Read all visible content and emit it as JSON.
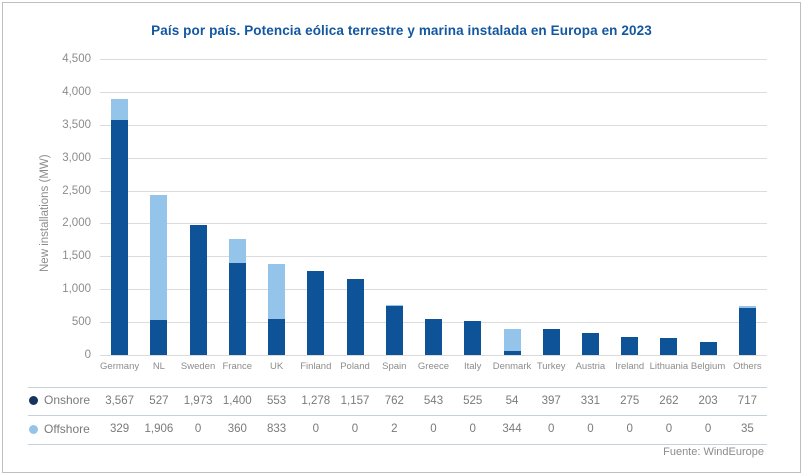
{
  "chart_data": {
    "type": "bar",
    "stacked": true,
    "title": "País por país. Potencia eólica terrestre y marina instalada en Europa en 2023",
    "ylabel": "New installations (MW)",
    "xlabel": "",
    "ylim": [
      0,
      4500
    ],
    "ytick_step": 500,
    "grid": true,
    "legend_position": "bottom-table-left",
    "categories": [
      "Germany",
      "NL",
      "Sweden",
      "France",
      "UK",
      "Finland",
      "Poland",
      "Spain",
      "Greece",
      "Italy",
      "Denmark",
      "Turkey",
      "Austria",
      "Ireland",
      "Lithuania",
      "Belgium",
      "Others"
    ],
    "series": [
      {
        "name": "Onshore",
        "color": "#0E5397",
        "dot_color": "#16335F",
        "values": [
          3567,
          527,
          1973,
          1400,
          553,
          1278,
          1157,
          762,
          543,
          525,
          54,
          397,
          331,
          275,
          262,
          203,
          717
        ]
      },
      {
        "name": "Offshore",
        "color": "#94C4EA",
        "dot_color": "#94C4EA",
        "values": [
          329,
          1906,
          0,
          360,
          833,
          0,
          0,
          2,
          0,
          0,
          344,
          0,
          0,
          0,
          0,
          0,
          35
        ]
      }
    ]
  },
  "source": "Fuente: WindEurope",
  "colors": {
    "title": "#1257A0",
    "axis_text": "#8C8C8C",
    "gridline": "#DBDBDB",
    "table_line": "#C7D2D8",
    "border": "#BFBFBF"
  }
}
